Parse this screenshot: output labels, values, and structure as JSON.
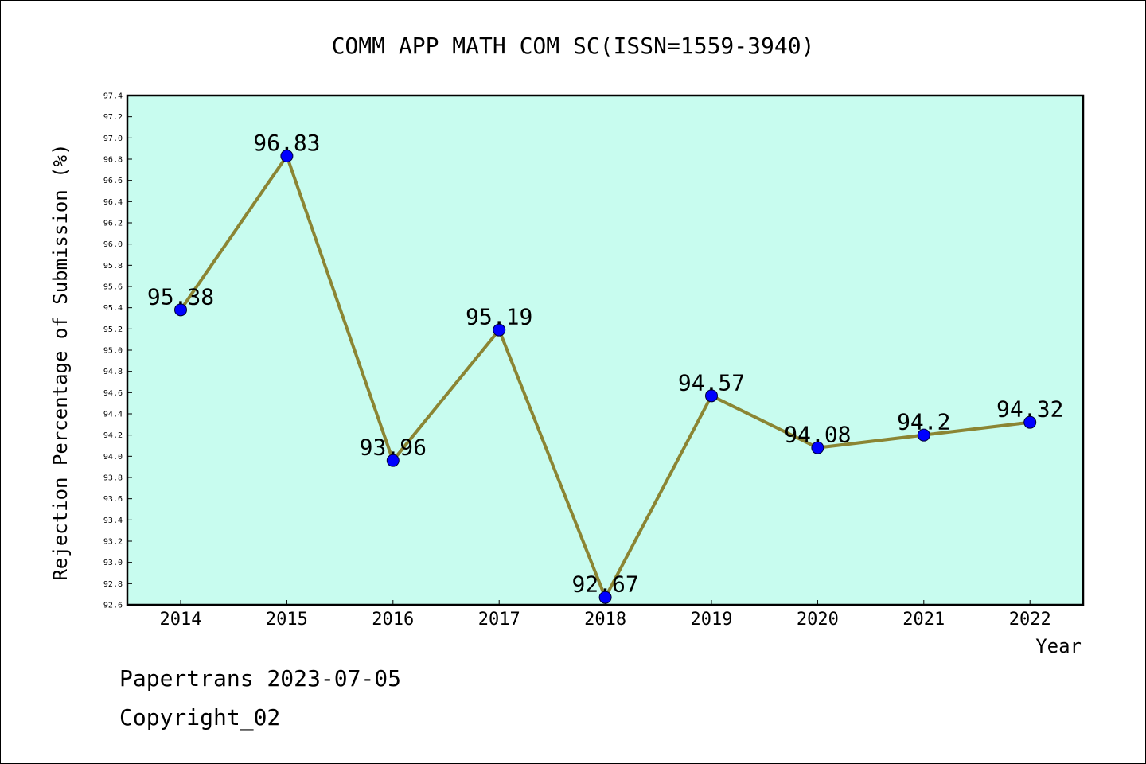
{
  "chart_data": {
    "type": "line",
    "title": "COMM APP MATH COM SC(ISSN=1559-3940)",
    "xlabel": "Year",
    "ylabel": "Rejection Percentage of Submission (%)",
    "categories": [
      "2014",
      "2015",
      "2016",
      "2017",
      "2018",
      "2019",
      "2020",
      "2021",
      "2022"
    ],
    "series": [
      {
        "values": [
          95.38,
          96.83,
          93.96,
          95.19,
          92.67,
          94.57,
          94.08,
          94.2,
          94.32
        ],
        "labels": [
          "95.38",
          "96.83",
          "93.96",
          "95.19",
          "92.67",
          "94.57",
          "94.08",
          "94.2",
          "94.32"
        ]
      }
    ],
    "ylim": [
      92.6,
      97.4
    ],
    "yticks": [
      "92.6",
      "92.8",
      "93.0",
      "93.2",
      "93.4",
      "93.6",
      "93.8",
      "94.0",
      "94.2",
      "94.4",
      "94.6",
      "94.8",
      "95.0",
      "95.2",
      "95.4",
      "95.6",
      "95.8",
      "96.0",
      "96.2",
      "96.4",
      "96.6",
      "96.8",
      "97.0",
      "97.2",
      "97.4"
    ],
    "grid": false,
    "legend": "none",
    "colors": {
      "plot_background": "#c8fcef",
      "line": "#8b8533",
      "marker": "#0000ff"
    }
  },
  "footer": {
    "line1": "Papertrans 2023-07-05",
    "line2": "Copyright_02"
  }
}
